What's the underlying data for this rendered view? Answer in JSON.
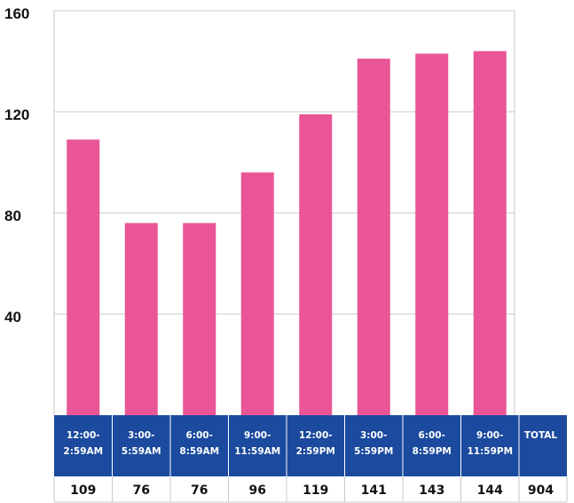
{
  "chart_data": {
    "type": "bar",
    "categories": [
      [
        "12:00-",
        "2:59AM"
      ],
      [
        "3:00-",
        "5:59AM"
      ],
      [
        "6:00-",
        "8:59AM"
      ],
      [
        "9:00-",
        "11:59AM"
      ],
      [
        "12:00-",
        "2:59PM"
      ],
      [
        "3:00-",
        "5:59PM"
      ],
      [
        "6:00-",
        "8:59PM"
      ],
      [
        "9:00-",
        "11:59PM"
      ]
    ],
    "values": [
      109,
      76,
      76,
      96,
      119,
      141,
      143,
      144
    ],
    "value_labels": [
      "109",
      "76",
      "76",
      "96",
      "119",
      "141",
      "143",
      "144"
    ],
    "total_label": "TOTAL",
    "total_value": "904",
    "ylim": [
      0,
      160
    ],
    "yticks": [
      40,
      80,
      120,
      160
    ],
    "ytick_labels": [
      "40",
      "80",
      "120",
      "160"
    ],
    "grid": true,
    "bar_color": "#e95596",
    "header_color": "#1b4a9e",
    "grid_color": "#c8c8c8"
  }
}
